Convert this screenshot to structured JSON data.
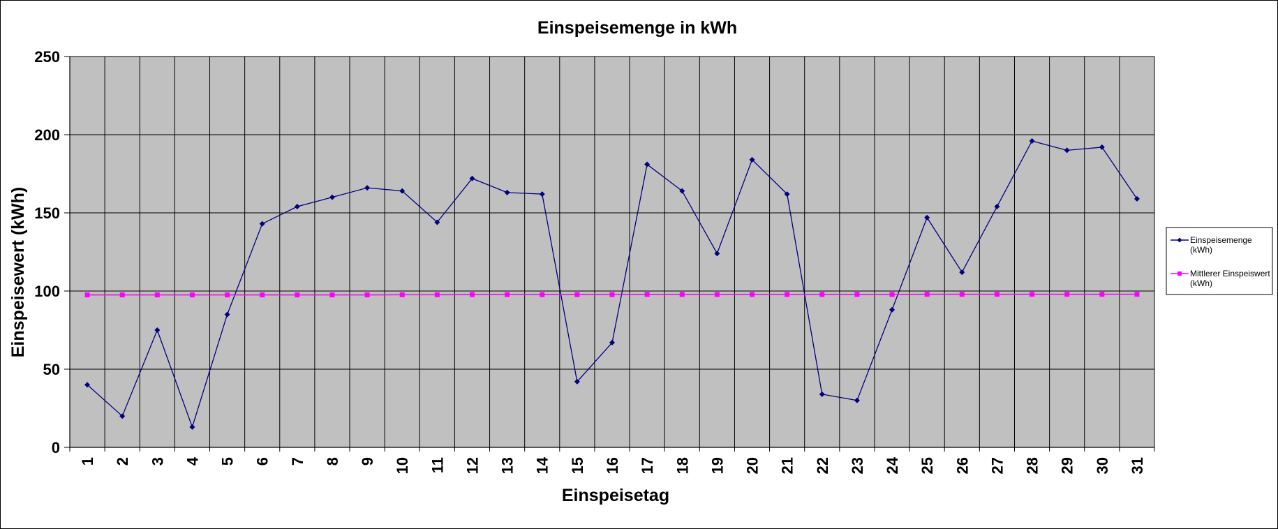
{
  "chart_data": {
    "type": "line",
    "title": "Einspeisemenge in kWh",
    "xlabel": "Einspeisetag",
    "ylabel": "Einspeisewert  (kWh)",
    "x": [
      1,
      2,
      3,
      4,
      5,
      6,
      7,
      8,
      9,
      10,
      11,
      12,
      13,
      14,
      15,
      16,
      17,
      18,
      19,
      20,
      21,
      22,
      23,
      24,
      25,
      26,
      27,
      28,
      29,
      30,
      31
    ],
    "ylim": [
      0,
      250
    ],
    "yticks": [
      0,
      50,
      100,
      150,
      200,
      250
    ],
    "grid": true,
    "legend_position": "right",
    "series": [
      {
        "name": "Einspeisemenge (kWh)",
        "name_lines": [
          "Einspeisemenge",
          "(kWh)"
        ],
        "color": "#000080",
        "marker": "diamond",
        "values": [
          40,
          20,
          75,
          13,
          85,
          143,
          154,
          160,
          166,
          164,
          144,
          172,
          163,
          162,
          42,
          67,
          181,
          164,
          124,
          184,
          162,
          34,
          30,
          88,
          147,
          112,
          154,
          196,
          190,
          192,
          159
        ]
      },
      {
        "name": "Mittlerer Einspeiswert (kWh)",
        "name_lines": [
          "Mittlerer Einspeiswert",
          "(kWh)"
        ],
        "color": "#ff00ff",
        "marker": "square",
        "values": [
          97.5,
          97.5,
          97.5,
          97.5,
          97.5,
          97.5,
          97.5,
          97.5,
          97.5,
          97.6,
          97.6,
          97.7,
          97.7,
          97.7,
          97.7,
          97.7,
          97.8,
          97.8,
          97.8,
          97.8,
          97.8,
          97.8,
          97.8,
          97.8,
          97.9,
          97.9,
          97.9,
          97.9,
          97.9,
          97.9,
          97.9
        ]
      }
    ],
    "colors": {
      "plot_background": "#c0c0c0",
      "grid": "#000000"
    }
  }
}
